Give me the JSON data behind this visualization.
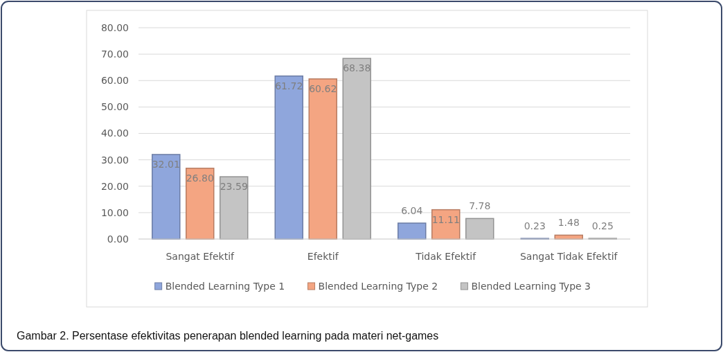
{
  "chart_data": {
    "type": "bar",
    "categories": [
      "Sangat Efektif",
      "Efektif",
      "Tidak Efektif",
      "Sangat Tidak Efektif"
    ],
    "series": [
      {
        "name": "Blended Learning Type 1",
        "color": "#8fa6dc",
        "values": [
          32.01,
          61.72,
          6.04,
          0.23
        ],
        "value_labels": [
          "32.01",
          "61.72",
          "6.04",
          "0.23"
        ]
      },
      {
        "name": "Blended Learning Type 2",
        "color": "#f4a582",
        "values": [
          26.8,
          60.62,
          11.11,
          1.48
        ],
        "value_labels": [
          "26.80",
          "60.62",
          "11.11",
          "1.48"
        ]
      },
      {
        "name": "Blended Learning Type 3",
        "color": "#c4c4c4",
        "values": [
          23.59,
          68.38,
          7.78,
          0.25
        ],
        "value_labels": [
          "23.59",
          "68.38",
          "7.78",
          "0.25"
        ]
      }
    ],
    "ylim": [
      0,
      80
    ],
    "yticks": [
      {
        "value": 0,
        "label": "0.00"
      },
      {
        "value": 10,
        "label": "10.00"
      },
      {
        "value": 20,
        "label": "20.00"
      },
      {
        "value": 30,
        "label": "30.00"
      },
      {
        "value": 40,
        "label": "40.00"
      },
      {
        "value": 50,
        "label": "50.00"
      },
      {
        "value": 60,
        "label": "60.00"
      },
      {
        "value": 70,
        "label": "70.00"
      },
      {
        "value": 80,
        "label": "80.00"
      }
    ],
    "grid": "y",
    "legend": "bottom",
    "annotations": [
      "Gambar 2. Persentase efektivitas penerapan blended learning pada materi net-games"
    ]
  }
}
